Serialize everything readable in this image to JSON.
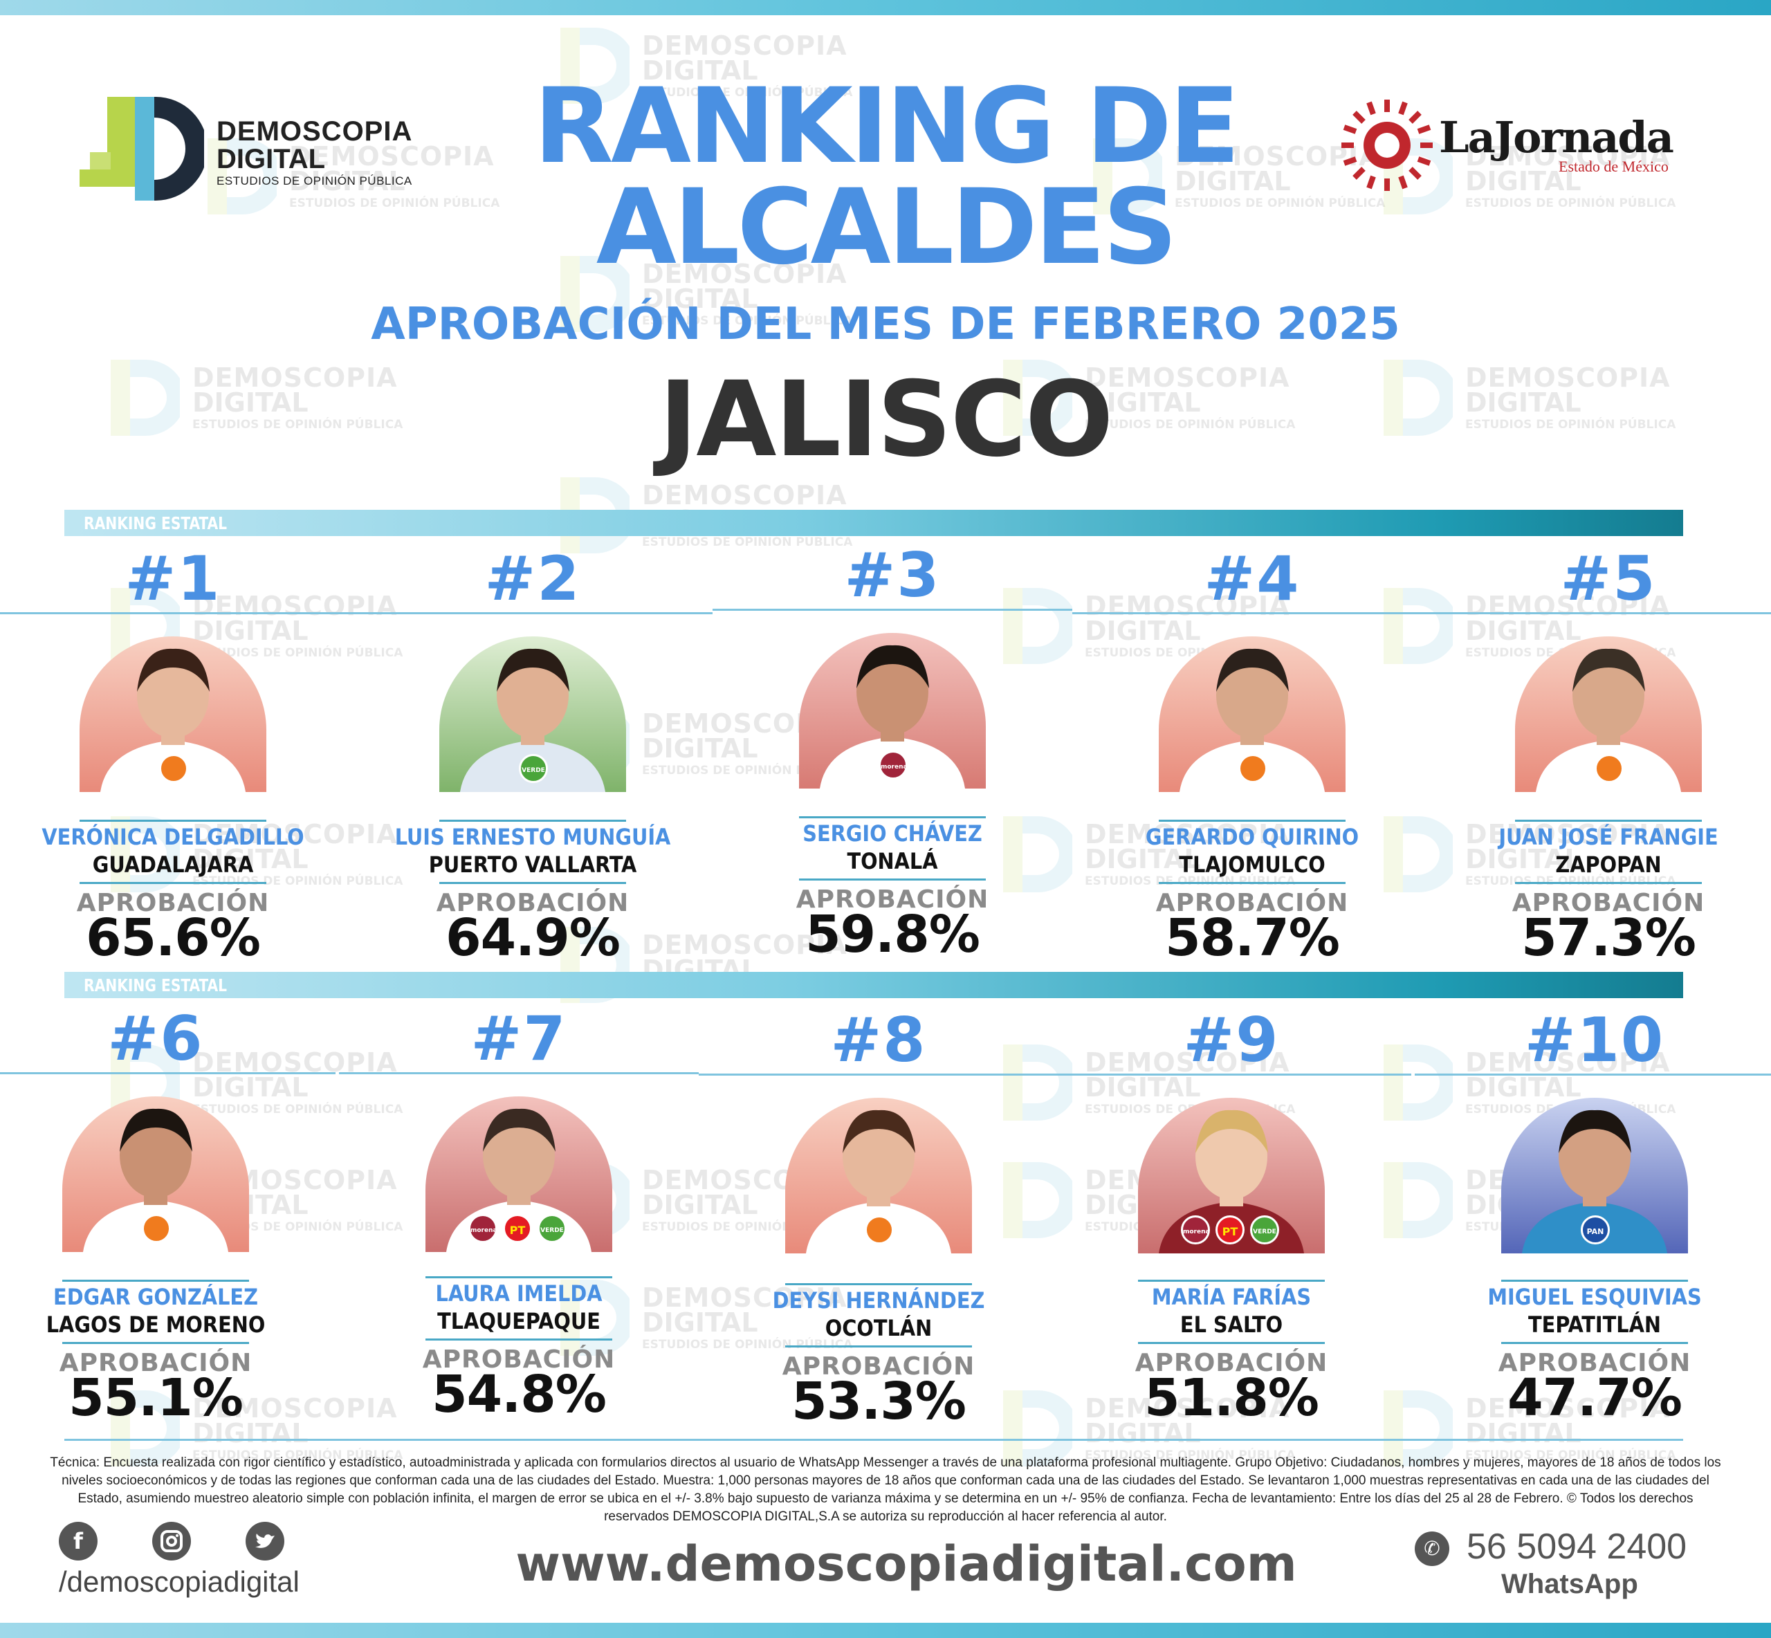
{
  "brand": {
    "line1": "DEMOSCOPIA",
    "line2": "DIGITAL",
    "tagline": "ESTUDIOS DE OPINIÓN PÚBLICA"
  },
  "partner": {
    "name": "LaJornada",
    "sub": "Estado de México"
  },
  "header": {
    "title_line1": "RANKING DE",
    "title_line2": "ALCALDES",
    "subtitle": "APROBACIÓN DEL MES DE FEBRERO 2025",
    "state": "JALISCO"
  },
  "section_label": "RANKING ESTATAL",
  "approval_label": "APROBACIÓN",
  "colors": {
    "accent": "#4a90e2",
    "teal": "#1f9bb3",
    "text_dark": "#333333"
  },
  "candidates": [
    {
      "rank": "#1",
      "name": "VERÓNICA DELGADILLO",
      "city": "GUADALAJARA",
      "approval": "65.6%",
      "parties": [
        "mc"
      ]
    },
    {
      "rank": "#2",
      "name": "LUIS ERNESTO MUNGUÍA",
      "city": "PUERTO VALLARTA",
      "approval": "64.9%",
      "parties": [
        "verde"
      ]
    },
    {
      "rank": "#3",
      "name": "SERGIO CHÁVEZ",
      "city": "TONALÁ",
      "approval": "59.8%",
      "parties": [
        "morena"
      ]
    },
    {
      "rank": "#4",
      "name": "GERARDO QUIRINO",
      "city": "TLAJOMULCO",
      "approval": "58.7%",
      "parties": [
        "mc"
      ]
    },
    {
      "rank": "#5",
      "name": "JUAN JOSÉ FRANGIE",
      "city": "ZAPOPAN",
      "approval": "57.3%",
      "parties": [
        "mc"
      ]
    },
    {
      "rank": "#6",
      "name": "EDGAR GONZÁLEZ",
      "city": "LAGOS DE MORENO",
      "approval": "55.1%",
      "parties": [
        "mc"
      ]
    },
    {
      "rank": "#7",
      "name": "LAURA IMELDA",
      "city": "TLAQUEPAQUE",
      "approval": "54.8%",
      "parties": [
        "morena",
        "pt",
        "verde"
      ]
    },
    {
      "rank": "#8",
      "name": "DEYSI HERNÁNDEZ",
      "city": "OCOTLÁN",
      "approval": "53.3%",
      "parties": [
        "mc"
      ]
    },
    {
      "rank": "#9",
      "name": "MARÍA FARÍAS",
      "city": "EL SALTO",
      "approval": "51.8%",
      "parties": [
        "morena",
        "pt",
        "verde"
      ]
    },
    {
      "rank": "#10",
      "name": "MIGUEL ESQUIVIAS",
      "city": "TEPATITLÁN",
      "approval": "47.7%",
      "parties": [
        "pan"
      ]
    }
  ],
  "party_labels": {
    "morena": "morena",
    "pt": "PT",
    "verde": "VERDE",
    "pan": "PAN",
    "mc": ""
  },
  "footer": {
    "methodology": "Técnica: Encuesta realizada con rigor científico y estadístico, autoadministrada y aplicada con formularios directos al usuario de WhatsApp Messenger a través de una plataforma profesional multiagente. Grupo Objetivo: Ciudadanos, hombres y mujeres, mayores de 18 años de todos los niveles socioeconómicos y de todas las regiones que conforman cada una de las ciudades del Estado. Muestra: 1,000 personas mayores de 18 años que conforman cada una de las ciudades del Estado. Se levantaron 1,000 muestras representativas en cada una de las ciudades del Estado, asumiendo muestreo aleatorio simple con población infinita, el margen de error se ubica en el +/- 3.8% bajo supuesto de varianza máxima y se determina en un +/- 95% de confianza. Fecha de levantamiento: Entre los días del 25 al 28 de Febrero. © Todos los derechos reservados DEMOSCOPIA DIGITAL,S.A se autoriza su reproducción al hacer referencia al autor.",
    "handle": "/demoscopiadigital",
    "website": "www.demoscopiadigital.com",
    "phone": "56 5094 2400",
    "phone_label": "WhatsApp",
    "social_icons": [
      "facebook-icon",
      "instagram-icon",
      "twitter-icon"
    ]
  }
}
